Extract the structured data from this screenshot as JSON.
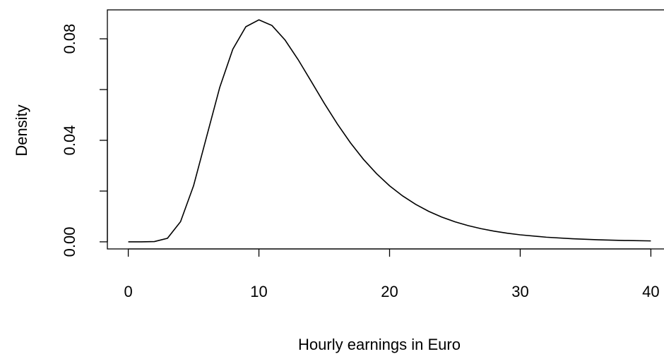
{
  "chart_data": {
    "type": "line",
    "xlabel": "Hourly earnings in Euro",
    "ylabel": "Density",
    "x": [
      0,
      1,
      2,
      3,
      4,
      5,
      6,
      7,
      8,
      9,
      10,
      11,
      12,
      13,
      14,
      15,
      16,
      17,
      18,
      19,
      20,
      21,
      22,
      23,
      24,
      25,
      26,
      27,
      28,
      29,
      30,
      32,
      34,
      36,
      38,
      40
    ],
    "series": [
      {
        "color": "#000000",
        "values": [
          0,
          0.0,
          0.0001,
          0.00139,
          0.00793,
          0.02214,
          0.0415,
          0.06083,
          0.07589,
          0.08476,
          0.08748,
          0.08523,
          0.07952,
          0.07181,
          0.06324,
          0.05461,
          0.04646,
          0.03905,
          0.03251,
          0.02688,
          0.02207,
          0.01808,
          0.01475,
          0.012,
          0.00974,
          0.0079,
          0.00641,
          0.00519,
          0.0042,
          0.00341,
          0.00276,
          0.00182,
          0.0012,
          0.0008,
          0.00053,
          0.00036
        ]
      }
    ],
    "xlim": [
      -1.6,
      41.6
    ],
    "ylim": [
      -0.0028,
      0.0914
    ],
    "xticks": [
      0,
      10,
      20,
      30,
      40
    ],
    "yticks": [
      {
        "value": 0,
        "label": "0.00"
      },
      {
        "value": 0.02
      },
      {
        "value": 0.04,
        "label": "0.04"
      },
      {
        "value": 0.06
      },
      {
        "value": 0.08,
        "label": "0.08"
      }
    ]
  }
}
